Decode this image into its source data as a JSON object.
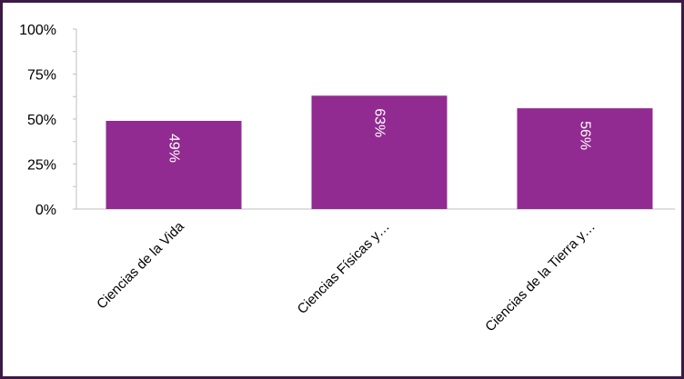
{
  "colors": {
    "bar": "#912a91",
    "frame": "#3b1a44",
    "axis": "#bfbfbf",
    "label_inside": "#ffffff"
  },
  "chart_data": {
    "type": "bar",
    "categories": [
      "Ciencias de la Vida",
      "Ciencias Físicas y…",
      "Ciencias de la Tierra y…"
    ],
    "values": [
      0.49,
      0.63,
      0.56
    ],
    "data_labels": [
      "49%",
      "63%",
      "56%"
    ],
    "ylim": [
      0,
      1
    ],
    "yticks": [
      0,
      0.25,
      0.5,
      0.75,
      1.0
    ],
    "ytick_labels": [
      "0%",
      "25%",
      "50%",
      "75%",
      "100%"
    ],
    "title": "",
    "xlabel": "",
    "ylabel": "",
    "grid": false,
    "legend": "none"
  }
}
